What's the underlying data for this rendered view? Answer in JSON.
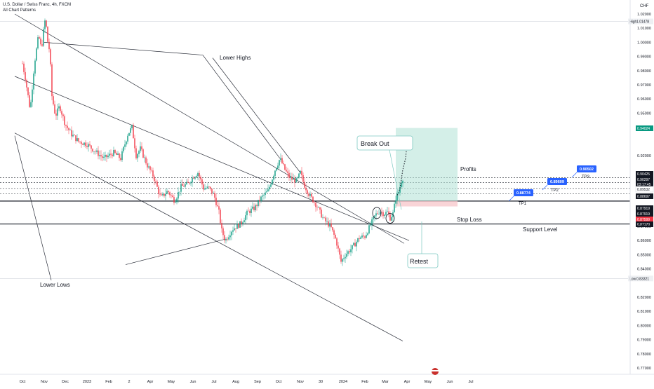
{
  "header": {
    "symbol": "U.S. Dollar / Swiss Franc, 4h, FXCM",
    "indicator": "All Chart Patterns",
    "currency": "CHF"
  },
  "chart_data": {
    "type": "candlestick",
    "symbol": "USDCHF",
    "timeframe": "4h",
    "y_range": [
      0.77,
      1.025
    ],
    "x_range": [
      "2022-10-01",
      "2024-07-31"
    ],
    "y_ticks": [
      "1.02000",
      "1.01000",
      "1.00000",
      "0.99000",
      "0.98000",
      "0.97000",
      "0.96000",
      "0.95000",
      "0.92000",
      "0.87000",
      "0.86000",
      "0.85000",
      "0.84000",
      "0.82000",
      "0.81000",
      "0.80000",
      "0.79000",
      "0.78000",
      "0.77000"
    ],
    "x_ticks": [
      {
        "label": "Oct",
        "date": "2022-10-01"
      },
      {
        "label": "Nov",
        "date": "2022-11-01"
      },
      {
        "label": "Dec",
        "date": "2022-12-01"
      },
      {
        "label": "2023",
        "date": "2023-01-01"
      },
      {
        "label": "Feb",
        "date": "2023-02-01"
      },
      {
        "label": "2",
        "date": "2023-03-02"
      },
      {
        "label": "Apr",
        "date": "2023-04-01"
      },
      {
        "label": "May",
        "date": "2023-05-01"
      },
      {
        "label": "Jun",
        "date": "2023-06-01"
      },
      {
        "label": "Jul",
        "date": "2023-07-01"
      },
      {
        "label": "Aug",
        "date": "2023-08-01"
      },
      {
        "label": "Sep",
        "date": "2023-09-01"
      },
      {
        "label": "Oct",
        "date": "2023-10-01"
      },
      {
        "label": "Nov",
        "date": "2023-11-01"
      },
      {
        "label": "30",
        "date": "2023-11-30"
      },
      {
        "label": "2024",
        "date": "2024-01-01"
      },
      {
        "label": "Feb",
        "date": "2024-02-01"
      },
      {
        "label": "Mar",
        "date": "2024-03-01"
      },
      {
        "label": "Apr",
        "date": "2024-04-01"
      },
      {
        "label": "May",
        "date": "2024-05-01"
      },
      {
        "label": "Jun",
        "date": "2024-06-01"
      },
      {
        "label": "Jul",
        "date": "2024-07-01"
      }
    ],
    "price_path": [
      [
        "2022-10-01",
        0.985
      ],
      [
        "2022-10-05",
        0.975
      ],
      [
        "2022-10-09",
        0.962
      ],
      [
        "2022-10-12",
        0.952
      ],
      [
        "2022-10-18",
        0.985
      ],
      [
        "2022-10-24",
        1.005
      ],
      [
        "2022-10-28",
        0.995
      ],
      [
        "2022-11-01",
        1.012
      ],
      [
        "2022-11-03",
        1.018
      ],
      [
        "2022-11-05",
        1.003
      ],
      [
        "2022-11-09",
        0.993
      ],
      [
        "2022-11-12",
        0.962
      ],
      [
        "2022-11-17",
        0.948
      ],
      [
        "2022-11-23",
        0.955
      ],
      [
        "2022-12-01",
        0.942
      ],
      [
        "2022-12-10",
        0.935
      ],
      [
        "2022-12-20",
        0.93
      ],
      [
        "2023-01-01",
        0.928
      ],
      [
        "2023-01-15",
        0.922
      ],
      [
        "2023-01-25",
        0.918
      ],
      [
        "2023-02-08",
        0.922
      ],
      [
        "2023-02-18",
        0.918
      ],
      [
        "2023-02-28",
        0.935
      ],
      [
        "2023-03-06",
        0.94
      ],
      [
        "2023-03-12",
        0.92
      ],
      [
        "2023-03-18",
        0.925
      ],
      [
        "2023-03-28",
        0.913
      ],
      [
        "2023-04-06",
        0.905
      ],
      [
        "2023-04-16",
        0.89
      ],
      [
        "2023-04-26",
        0.895
      ],
      [
        "2023-05-06",
        0.888
      ],
      [
        "2023-05-15",
        0.898
      ],
      [
        "2023-05-25",
        0.9
      ],
      [
        "2023-06-01",
        0.905
      ],
      [
        "2023-06-08",
        0.908
      ],
      [
        "2023-06-16",
        0.897
      ],
      [
        "2023-06-24",
        0.897
      ],
      [
        "2023-07-01",
        0.892
      ],
      [
        "2023-07-08",
        0.88
      ],
      [
        "2023-07-12",
        0.867
      ],
      [
        "2023-07-17",
        0.86
      ],
      [
        "2023-07-27",
        0.868
      ],
      [
        "2023-08-08",
        0.872
      ],
      [
        "2023-08-18",
        0.88
      ],
      [
        "2023-08-28",
        0.883
      ],
      [
        "2023-09-06",
        0.89
      ],
      [
        "2023-09-16",
        0.895
      ],
      [
        "2023-09-26",
        0.91
      ],
      [
        "2023-10-03",
        0.918
      ],
      [
        "2023-10-10",
        0.91
      ],
      [
        "2023-10-17",
        0.904
      ],
      [
        "2023-10-27",
        0.902
      ],
      [
        "2023-11-01",
        0.908
      ],
      [
        "2023-11-06",
        0.9
      ],
      [
        "2023-11-14",
        0.892
      ],
      [
        "2023-11-24",
        0.885
      ],
      [
        "2023-12-04",
        0.875
      ],
      [
        "2023-12-14",
        0.87
      ],
      [
        "2023-12-22",
        0.86
      ],
      [
        "2023-12-29",
        0.845
      ],
      [
        "2024-01-04",
        0.85
      ],
      [
        "2024-01-14",
        0.855
      ],
      [
        "2024-01-24",
        0.862
      ],
      [
        "2024-02-01",
        0.863
      ],
      [
        "2024-02-08",
        0.87
      ],
      [
        "2024-02-16",
        0.878
      ],
      [
        "2024-02-22",
        0.881
      ],
      [
        "2024-02-28",
        0.879
      ],
      [
        "2024-03-04",
        0.88
      ],
      [
        "2024-03-08",
        0.876
      ],
      [
        "2024-03-12",
        0.879
      ],
      [
        "2024-03-16",
        0.89
      ],
      [
        "2024-03-20",
        0.894
      ],
      [
        "2024-03-24",
        0.902
      ],
      [
        "2024-03-26",
        0.904
      ]
    ],
    "trendlines": [
      {
        "from": [
          "2022-09-20",
          1.02
        ],
        "to": [
          "2024-03-28",
          0.858
        ]
      },
      {
        "from": [
          "2022-09-20",
          0.936
        ],
        "to": [
          "2024-03-26",
          0.789
        ]
      },
      {
        "from": [
          "2022-09-20",
          0.976
        ],
        "to": [
          "2024-04-04",
          0.86
        ]
      },
      {
        "from": [
          "2022-09-20",
          0.934
        ],
        "to": [
          "2022-11-11",
          0.832
        ]
      },
      {
        "from": [
          "2022-11-01",
          1.0
        ],
        "to": [
          "2023-06-15",
          0.991
        ]
      },
      {
        "from": [
          "2023-06-15",
          0.991
        ],
        "to": [
          "2023-10-03",
          0.918
        ]
      },
      {
        "from": [
          "2023-06-29",
          0.989
        ],
        "to": [
          "2023-11-01",
          0.908
        ]
      },
      {
        "from": [
          "2023-02-25",
          0.843
        ],
        "to": [
          "2023-07-17",
          0.861
        ]
      }
    ],
    "dashed_levels": [
      0.9045,
      0.9009,
      0.8968,
      0.8929
    ],
    "solid_levels": [
      0.8879,
      0.8717
    ],
    "position": {
      "entry": 0.8879,
      "stop": 0.8841,
      "target": 0.9395,
      "start": "2024-03-04",
      "end": "2024-06-30"
    },
    "projection": [
      [
        "2024-03-18",
        0.892
      ],
      [
        "2024-03-22",
        0.897
      ],
      [
        "2024-03-26",
        0.91
      ],
      [
        "2024-03-30",
        0.918
      ],
      [
        "2024-04-01",
        0.928
      ],
      [
        "2024-04-04",
        0.932
      ]
    ],
    "annotations": [
      {
        "text": "Lower Highs"
      },
      {
        "text": "Lower Lows"
      },
      {
        "text": "Break Out"
      },
      {
        "text": "Retest"
      },
      {
        "text": "Profits"
      },
      {
        "text": "Stop Loss"
      },
      {
        "text": "Support Level"
      }
    ],
    "targets": [
      {
        "label": "TP1",
        "value": "0.88774"
      },
      {
        "label": "TP2",
        "value": "0.89609"
      },
      {
        "label": "TP3",
        "value": "0.90502"
      }
    ],
    "high_marker": {
      "label": "High",
      "value": "1.01478"
    },
    "low_marker": {
      "label": "Low",
      "value": "0.83321"
    },
    "price_tags": [
      {
        "value": "0.94024",
        "kind": "green"
      },
      {
        "value": "0.90425",
        "kind": "black"
      },
      {
        "value": "0.90297",
        "kind": "black"
      },
      {
        "value": "03:17:45",
        "kind": "black"
      },
      {
        "value": "0.89532",
        "kind": "plain"
      },
      {
        "value": "0.88697",
        "kind": "black"
      },
      {
        "value": "0.87919",
        "kind": "black"
      },
      {
        "value": "0.87919",
        "kind": "black"
      },
      {
        "value": "0.87599",
        "kind": "red"
      },
      {
        "value": "0.87170",
        "kind": "black"
      }
    ]
  }
}
